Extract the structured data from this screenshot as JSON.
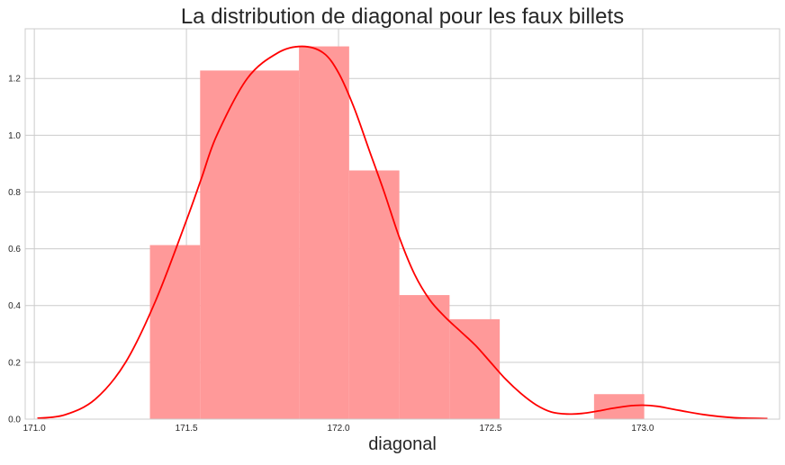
{
  "chart_data": {
    "type": "histogram",
    "title": "La distribution de diagonal pour les faux billets",
    "xlabel": "diagonal",
    "ylabel": "",
    "xlim": [
      170.97,
      173.45
    ],
    "ylim": [
      0,
      1.375
    ],
    "grid": true,
    "x_ticks": [
      "171.0",
      "171.5",
      "172.0",
      "172.5",
      "173.0"
    ],
    "y_ticks": [
      "0.0",
      "0.2",
      "0.4",
      "0.6",
      "0.8",
      "1.0",
      "1.2"
    ],
    "bins": [
      {
        "x0": 171.38,
        "x1": 171.545,
        "density": 0.613
      },
      {
        "x0": 171.545,
        "x1": 171.87,
        "density": 1.228
      },
      {
        "x0": 171.87,
        "x1": 172.035,
        "density": 1.313
      },
      {
        "x0": 172.035,
        "x1": 172.2,
        "density": 0.876
      },
      {
        "x0": 172.2,
        "x1": 172.365,
        "density": 0.437
      },
      {
        "x0": 172.365,
        "x1": 172.53,
        "density": 0.352
      },
      {
        "x0": 172.84,
        "x1": 173.005,
        "density": 0.088
      }
    ],
    "kde": {
      "x": [
        171.01,
        171.1,
        171.2,
        171.3,
        171.4,
        171.5,
        171.55,
        171.6,
        171.7,
        171.8,
        171.88,
        171.95,
        172.0,
        172.05,
        172.1,
        172.15,
        172.2,
        172.25,
        172.3,
        172.35,
        172.4,
        172.45,
        172.5,
        172.55,
        172.6,
        172.65,
        172.7,
        172.75,
        172.8,
        172.85,
        172.9,
        172.95,
        173.0,
        173.05,
        173.1,
        173.2,
        173.3,
        173.41
      ],
      "y": [
        0.003,
        0.015,
        0.07,
        0.2,
        0.42,
        0.7,
        0.85,
        1.0,
        1.2,
        1.29,
        1.313,
        1.29,
        1.22,
        1.1,
        0.95,
        0.8,
        0.64,
        0.51,
        0.42,
        0.36,
        0.31,
        0.26,
        0.2,
        0.14,
        0.09,
        0.05,
        0.025,
        0.018,
        0.02,
        0.028,
        0.038,
        0.046,
        0.049,
        0.045,
        0.035,
        0.016,
        0.005,
        0.002
      ]
    },
    "bar_color": "#ff9999",
    "line_color": "#ff0000",
    "grid_color": "#cccccc",
    "spine_color": "#cccccc"
  }
}
